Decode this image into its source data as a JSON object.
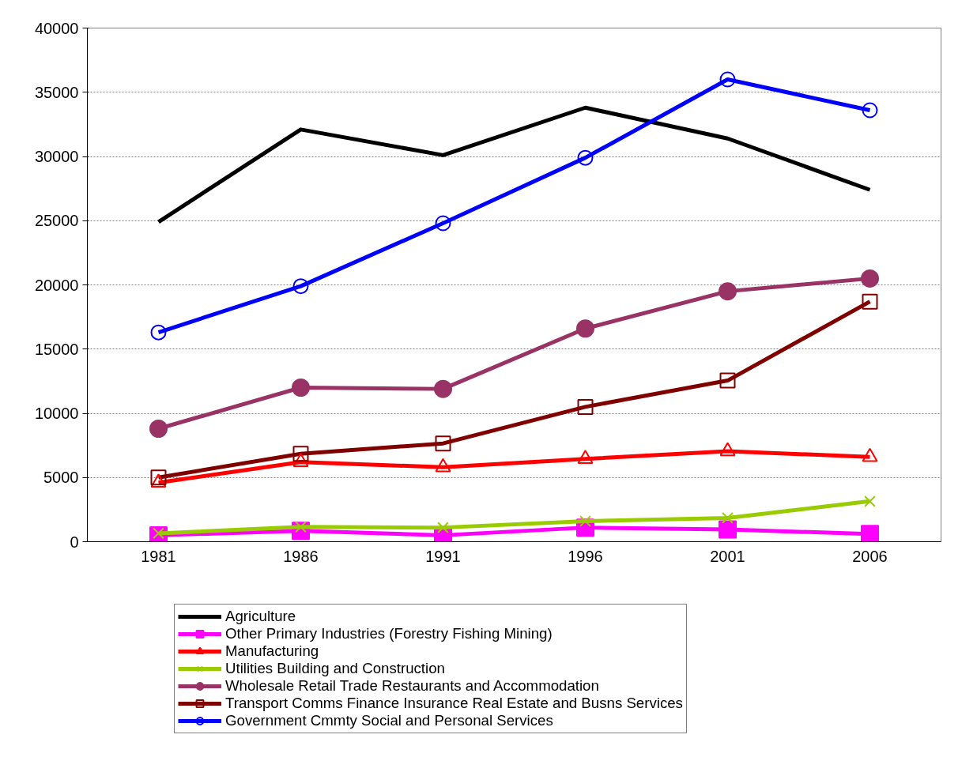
{
  "chart_data": {
    "type": "line",
    "categories": [
      "1981",
      "1986",
      "1991",
      "1996",
      "2001",
      "2006"
    ],
    "series": [
      {
        "name": "Agriculture",
        "color": "#000000",
        "marker": "none",
        "values": [
          24900,
          32100,
          30100,
          33800,
          31400,
          27400
        ]
      },
      {
        "name": "Other Primary Industries (Forestry Fishing Mining)",
        "color": "#ff00ff",
        "marker": "square",
        "values": [
          500,
          850,
          500,
          1100,
          950,
          600
        ]
      },
      {
        "name": "Manufacturing",
        "color": "#ff0000",
        "marker": "triangle",
        "values": [
          4600,
          6200,
          5800,
          6450,
          7050,
          6600
        ]
      },
      {
        "name": "Utilities Building and Construction",
        "color": "#99cc00",
        "marker": "cross",
        "values": [
          650,
          1150,
          1100,
          1600,
          1850,
          3150
        ]
      },
      {
        "name": "Wholesale Retail Trade Restaurants and Accommodation",
        "color": "#993366",
        "marker": "circle",
        "values": [
          8800,
          12000,
          11900,
          16600,
          19500,
          20500
        ]
      },
      {
        "name": "Transport Comms Finance Insurance Real Estate and Busns Services",
        "color": "#800000",
        "marker": "square",
        "values": [
          5000,
          6850,
          7650,
          10500,
          12550,
          18700
        ]
      },
      {
        "name": "Government Cmmty Social and Personal Services",
        "color": "#0000ff",
        "marker": "circle",
        "values": [
          16300,
          19900,
          24800,
          29900,
          36000,
          33600
        ]
      }
    ],
    "ylim": [
      0,
      40000
    ],
    "yticks": [
      0,
      5000,
      10000,
      15000,
      20000,
      25000,
      30000,
      35000,
      40000
    ],
    "grid": "y",
    "legend": "bottom",
    "line_style": "solid"
  }
}
